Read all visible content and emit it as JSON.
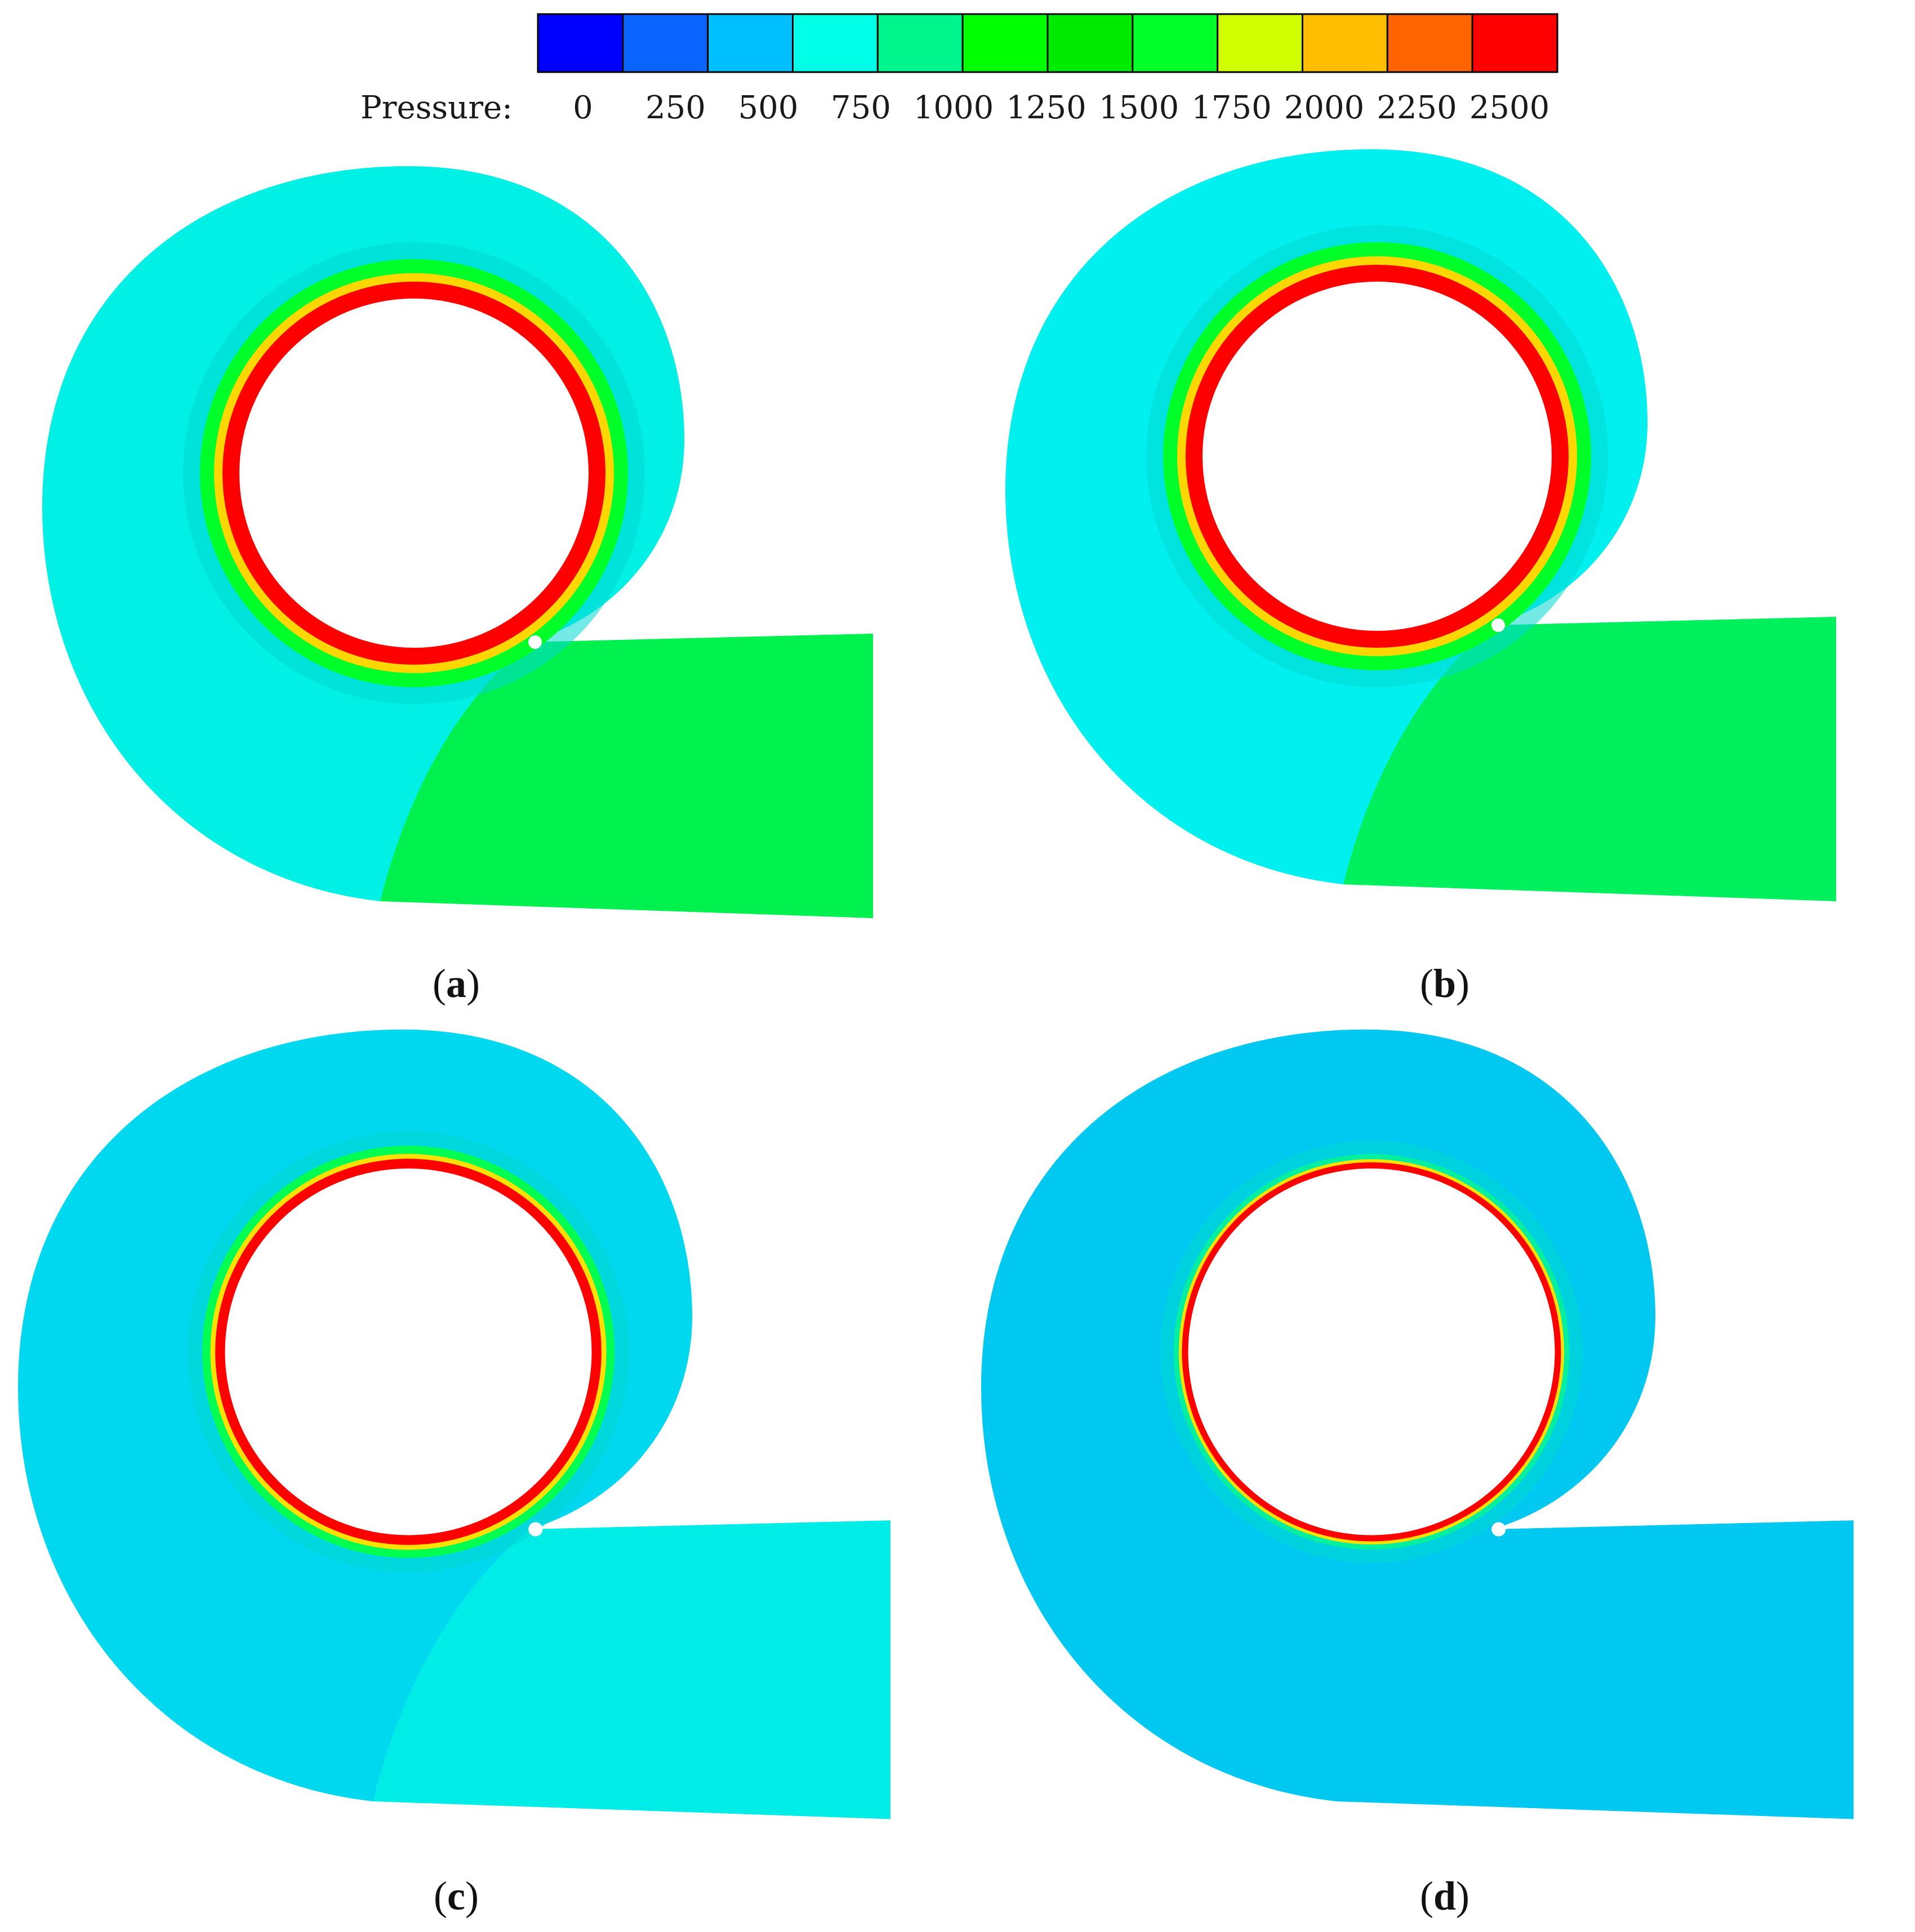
{
  "legend": {
    "title": "Pressure:",
    "ticks": [
      "0",
      "250",
      "500",
      "750",
      "1000",
      "1250",
      "1500",
      "1750",
      "2000",
      "2250",
      "2500"
    ],
    "colors": [
      "#0000ff",
      "#0a64ff",
      "#00bfff",
      "#00ffe6",
      "#00f58c",
      "#00ff00",
      "#00ea00",
      "#00ff28",
      "#d2ff00",
      "#ffbf00",
      "#ff6400",
      "#ff0000"
    ]
  },
  "panels": [
    {
      "label_open": "(",
      "letter": "a",
      "label_close": ")",
      "background": "#00f0e6",
      "outlet": "#00f03c",
      "ring_outer": "#00ff28",
      "ring_mid": "#ffd700",
      "ring_inner": "#ff0000"
    },
    {
      "label_open": "(",
      "letter": "b",
      "label_close": ")",
      "background": "#00f0f0",
      "outlet": "#00f04c",
      "ring_outer": "#00ff28",
      "ring_mid": "#ffd700",
      "ring_inner": "#ff0000"
    },
    {
      "label_open": "(",
      "letter": "c",
      "label_close": ")",
      "background": "#00d8f0",
      "outlet": "#00f0e6",
      "ring_outer": "#00ff50",
      "ring_mid": "#ffe000",
      "ring_inner": "#ff0000"
    },
    {
      "label_open": "(",
      "letter": "d",
      "label_close": ")",
      "background": "#00c8f0",
      "outlet": "#00c8f0",
      "ring_outer": "#00f0a0",
      "ring_mid": "#ffe000",
      "ring_inner": "#ff0000"
    }
  ]
}
